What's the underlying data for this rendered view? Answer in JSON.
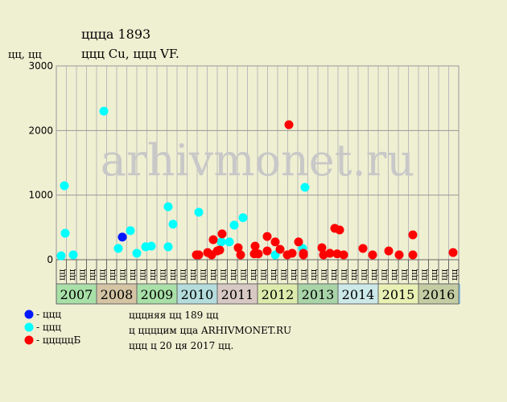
{
  "chart_data": {
    "type": "scatter",
    "title": "ццца 1893",
    "subtitle": "ццц Cu, ццц VF.",
    "y_label": "цц, цц",
    "watermark": "arhivmonet.ru",
    "xlim": [
      2007,
      2017
    ],
    "ylim": [
      0,
      3000
    ],
    "yticks": [
      0,
      1000,
      2000,
      3000
    ],
    "years": [
      "2007",
      "2008",
      "2009",
      "2010",
      "2011",
      "2012",
      "2013",
      "2014",
      "2015",
      "2016"
    ],
    "year_colors": [
      "#a8e0a8",
      "#d4c4a4",
      "#a8e0a8",
      "#b4dcdc",
      "#d8c8c4",
      "#dcebac",
      "#a8d4a8",
      "#cce8e8",
      "#e8f0b4",
      "#c4cca4"
    ],
    "quarter_labels": [
      "цц",
      "цц",
      "цц",
      "цц"
    ],
    "grid": true,
    "series": [
      {
        "name": "- ццц",
        "color": "#0018ff",
        "x": [
          2008.64
        ],
        "values": [
          350
        ]
      },
      {
        "name": "- ццц",
        "color": "#00ffff",
        "x": [
          2007.12,
          2007.2,
          2007.22,
          2007.42,
          2008.18,
          2008.54,
          2008.84,
          2009.0,
          2009.22,
          2009.36,
          2009.78,
          2009.78,
          2009.9,
          2010.54,
          2011.1,
          2011.3,
          2011.42,
          2011.64,
          2012.44,
          2013.12,
          2013.18
        ],
        "values": [
          60,
          1145,
          410,
          75,
          2300,
          175,
          450,
          100,
          200,
          210,
          820,
          200,
          550,
          735,
          275,
          275,
          535,
          650,
          75,
          175,
          1120
        ]
      },
      {
        "name": "- цццццБ",
        "color": "#ff0000",
        "x": [
          2010.48,
          2010.54,
          2010.76,
          2010.9,
          2010.86,
          2011.0,
          2011.06,
          2011.12,
          2011.52,
          2011.58,
          2011.92,
          2011.94,
          2012.02,
          2012.24,
          2012.24,
          2012.44,
          2012.56,
          2012.78,
          2012.74,
          2012.86,
          2013.02,
          2013.14,
          2013.14,
          2013.6,
          2013.64,
          2013.8,
          2013.92,
          2013.98,
          2014.04,
          2014.14,
          2014.62,
          2014.86,
          2015.26,
          2015.52,
          2015.86,
          2015.86,
          2016.86
        ],
        "values": [
          75,
          75,
          110,
          310,
          75,
          135,
          150,
          400,
          185,
          75,
          90,
          210,
          90,
          360,
          135,
          275,
          160,
          2090,
          75,
          100,
          275,
          100,
          75,
          185,
          75,
          100,
          485,
          90,
          460,
          75,
          175,
          75,
          135,
          75,
          385,
          75,
          110
        ]
      }
    ],
    "notes": [
      "цццняя цц 189 цц",
      "ц ццццим цца ARHIVMONET.RU",
      "ццц ц 20 ця 2017 цц."
    ]
  }
}
